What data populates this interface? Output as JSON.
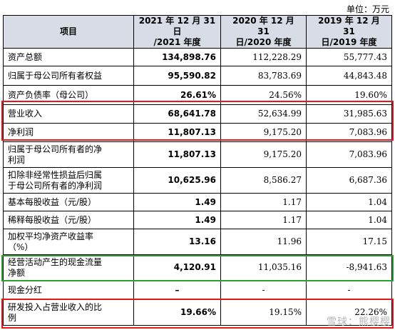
{
  "unit_label": "单位：万元",
  "header": {
    "item": "项目",
    "col2021_line1": "2021 年 12 月 31 日",
    "col2021_line2": "/2021 年度",
    "col2020_line1": "2020 年 12 月 31",
    "col2020_line2": "日/2020 年度",
    "col2019_line1": "2019 年 12 月 31",
    "col2019_line2": "日/2019 年度"
  },
  "rows": [
    {
      "label": "资产总额",
      "v2021": "134,898.76",
      "v2020": "112,228.29",
      "v2019": "55,777.43"
    },
    {
      "label": "归属于母公司所有者权益",
      "v2021": "95,590.82",
      "v2020": "83,783.69",
      "v2019": "44,843.48"
    },
    {
      "label": "资产负债率（母公司）",
      "v2021": "26.61%",
      "v2020": "24.56%",
      "v2019": "19.60%"
    },
    {
      "label": "营业收入",
      "v2021": "68,641.78",
      "v2020": "52,634.99",
      "v2019": "31,985.63"
    },
    {
      "label": "净利润",
      "v2021": "11,807.13",
      "v2020": "9,175.20",
      "v2019": "7,083.96"
    },
    {
      "label_line1": "归属于母公司所有者的净",
      "label_line2": "利润",
      "v2021": "11,807.13",
      "v2020": "9,175.20",
      "v2019": "7,083.96"
    },
    {
      "label_line1": "扣除非经常性损益后归属",
      "label_line2": "于母公司所有者的净利润",
      "v2021": "10,625.96",
      "v2020": "8,586.27",
      "v2019": "6,687.36"
    },
    {
      "label": "基本每股收益（元/股）",
      "v2021": "1.49",
      "v2020": "1.17",
      "v2019": "1.04"
    },
    {
      "label": "稀释每股收益（元/股）",
      "v2021": "1.49",
      "v2020": "1.17",
      "v2019": "1.04"
    },
    {
      "label_line1": "加权平均净资产收益率",
      "label_line2": "（%）",
      "v2021": "13.16",
      "v2020": "11.96",
      "v2019": "17.15"
    },
    {
      "label_line1": "经营活动产生的现金流量",
      "label_line2": "净额",
      "v2021": "4,120.91",
      "v2020": "11,035.16",
      "v2019": "-8,941.63"
    },
    {
      "label": "现金分红",
      "v2021": "–",
      "v2020": "-",
      "v2019": "-"
    },
    {
      "label_line1": "研发投入占营业收入的比",
      "label_line2": "例",
      "v2021": "19.66%",
      "v2020": "19.15%",
      "v2019": "22.26%"
    }
  ],
  "watermark": "雪球：熊樱樱",
  "colors": {
    "header_bg": "#d7dce7",
    "highlight_red": "#e8151b",
    "highlight_green": "#2aa32a"
  }
}
